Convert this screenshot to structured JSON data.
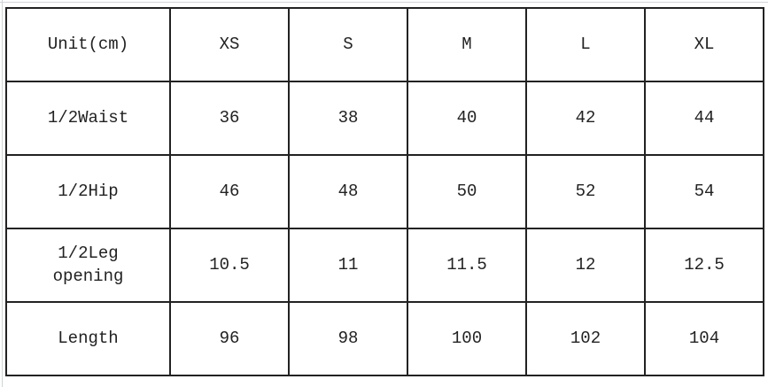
{
  "table": {
    "header": [
      "Unit(cm)",
      "XS",
      "S",
      "M",
      "L",
      "XL"
    ],
    "rows": [
      [
        "1/2Waist",
        "36",
        "38",
        "40",
        "42",
        "44"
      ],
      [
        "1/2Hip",
        "46",
        "48",
        "50",
        "52",
        "54"
      ],
      [
        "1/2Leg\nopening",
        "10.5",
        "11",
        "11.5",
        "12",
        "12.5"
      ],
      [
        "Length",
        "96",
        "98",
        "100",
        "102",
        "104"
      ]
    ]
  }
}
